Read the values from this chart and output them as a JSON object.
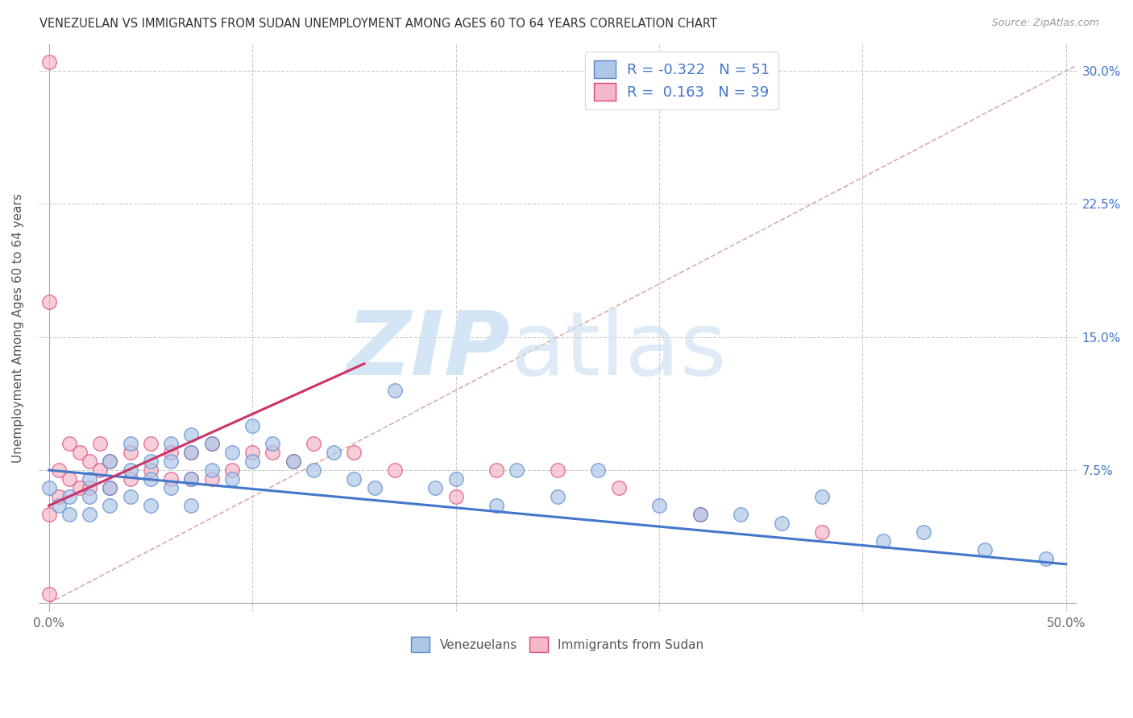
{
  "title": "VENEZUELAN VS IMMIGRANTS FROM SUDAN UNEMPLOYMENT AMONG AGES 60 TO 64 YEARS CORRELATION CHART",
  "source": "Source: ZipAtlas.com",
  "ylabel": "Unemployment Among Ages 60 to 64 years",
  "xlim": [
    -0.005,
    0.505
  ],
  "ylim": [
    -0.005,
    0.315
  ],
  "xticks": [
    0.0,
    0.1,
    0.2,
    0.3,
    0.4,
    0.5
  ],
  "xticklabels": [
    "0.0%",
    "",
    "",
    "",
    "",
    "50.0%"
  ],
  "yticks": [
    0.0,
    0.075,
    0.15,
    0.225,
    0.3
  ],
  "yticklabels_right": [
    "",
    "7.5%",
    "15.0%",
    "22.5%",
    "30.0%"
  ],
  "blue_R": -0.322,
  "blue_N": 51,
  "pink_R": 0.163,
  "pink_N": 39,
  "blue_face": "#aec6e8",
  "blue_edge": "#5588cc",
  "pink_face": "#f5b8c8",
  "pink_edge": "#dd4477",
  "blue_line_color": "#4477cc",
  "pink_line_color": "#cc3366",
  "diag_color": "#ddaaaa",
  "grid_color": "#cccccc",
  "bg_color": "#ffffff",
  "blue_x": [
    0.0,
    0.005,
    0.01,
    0.01,
    0.02,
    0.02,
    0.02,
    0.03,
    0.03,
    0.03,
    0.04,
    0.04,
    0.04,
    0.05,
    0.05,
    0.05,
    0.06,
    0.06,
    0.06,
    0.07,
    0.07,
    0.07,
    0.07,
    0.08,
    0.08,
    0.09,
    0.09,
    0.1,
    0.1,
    0.11,
    0.12,
    0.13,
    0.14,
    0.15,
    0.16,
    0.17,
    0.19,
    0.2,
    0.22,
    0.23,
    0.25,
    0.27,
    0.3,
    0.32,
    0.34,
    0.36,
    0.38,
    0.41,
    0.43,
    0.46,
    0.49
  ],
  "blue_y": [
    0.065,
    0.055,
    0.06,
    0.05,
    0.07,
    0.06,
    0.05,
    0.08,
    0.065,
    0.055,
    0.09,
    0.075,
    0.06,
    0.08,
    0.07,
    0.055,
    0.09,
    0.08,
    0.065,
    0.095,
    0.085,
    0.07,
    0.055,
    0.09,
    0.075,
    0.085,
    0.07,
    0.1,
    0.08,
    0.09,
    0.08,
    0.075,
    0.085,
    0.07,
    0.065,
    0.12,
    0.065,
    0.07,
    0.055,
    0.075,
    0.06,
    0.075,
    0.055,
    0.05,
    0.05,
    0.045,
    0.06,
    0.035,
    0.04,
    0.03,
    0.025
  ],
  "pink_x": [
    0.0,
    0.0,
    0.0,
    0.0,
    0.005,
    0.005,
    0.01,
    0.01,
    0.015,
    0.015,
    0.02,
    0.02,
    0.025,
    0.025,
    0.03,
    0.03,
    0.04,
    0.04,
    0.05,
    0.05,
    0.06,
    0.06,
    0.07,
    0.07,
    0.08,
    0.08,
    0.09,
    0.1,
    0.11,
    0.12,
    0.13,
    0.15,
    0.17,
    0.2,
    0.22,
    0.25,
    0.28,
    0.32,
    0.38
  ],
  "pink_y": [
    0.305,
    0.17,
    0.05,
    0.005,
    0.075,
    0.06,
    0.09,
    0.07,
    0.085,
    0.065,
    0.08,
    0.065,
    0.09,
    0.075,
    0.08,
    0.065,
    0.085,
    0.07,
    0.09,
    0.075,
    0.085,
    0.07,
    0.085,
    0.07,
    0.09,
    0.07,
    0.075,
    0.085,
    0.085,
    0.08,
    0.09,
    0.085,
    0.075,
    0.06,
    0.075,
    0.075,
    0.065,
    0.05,
    0.04
  ],
  "blue_line_x0": 0.0,
  "blue_line_x1": 0.5,
  "blue_line_y0": 0.075,
  "blue_line_y1": 0.022,
  "pink_line_x0": 0.0,
  "pink_line_x1": 0.155,
  "pink_line_y0": 0.055,
  "pink_line_y1": 0.135
}
